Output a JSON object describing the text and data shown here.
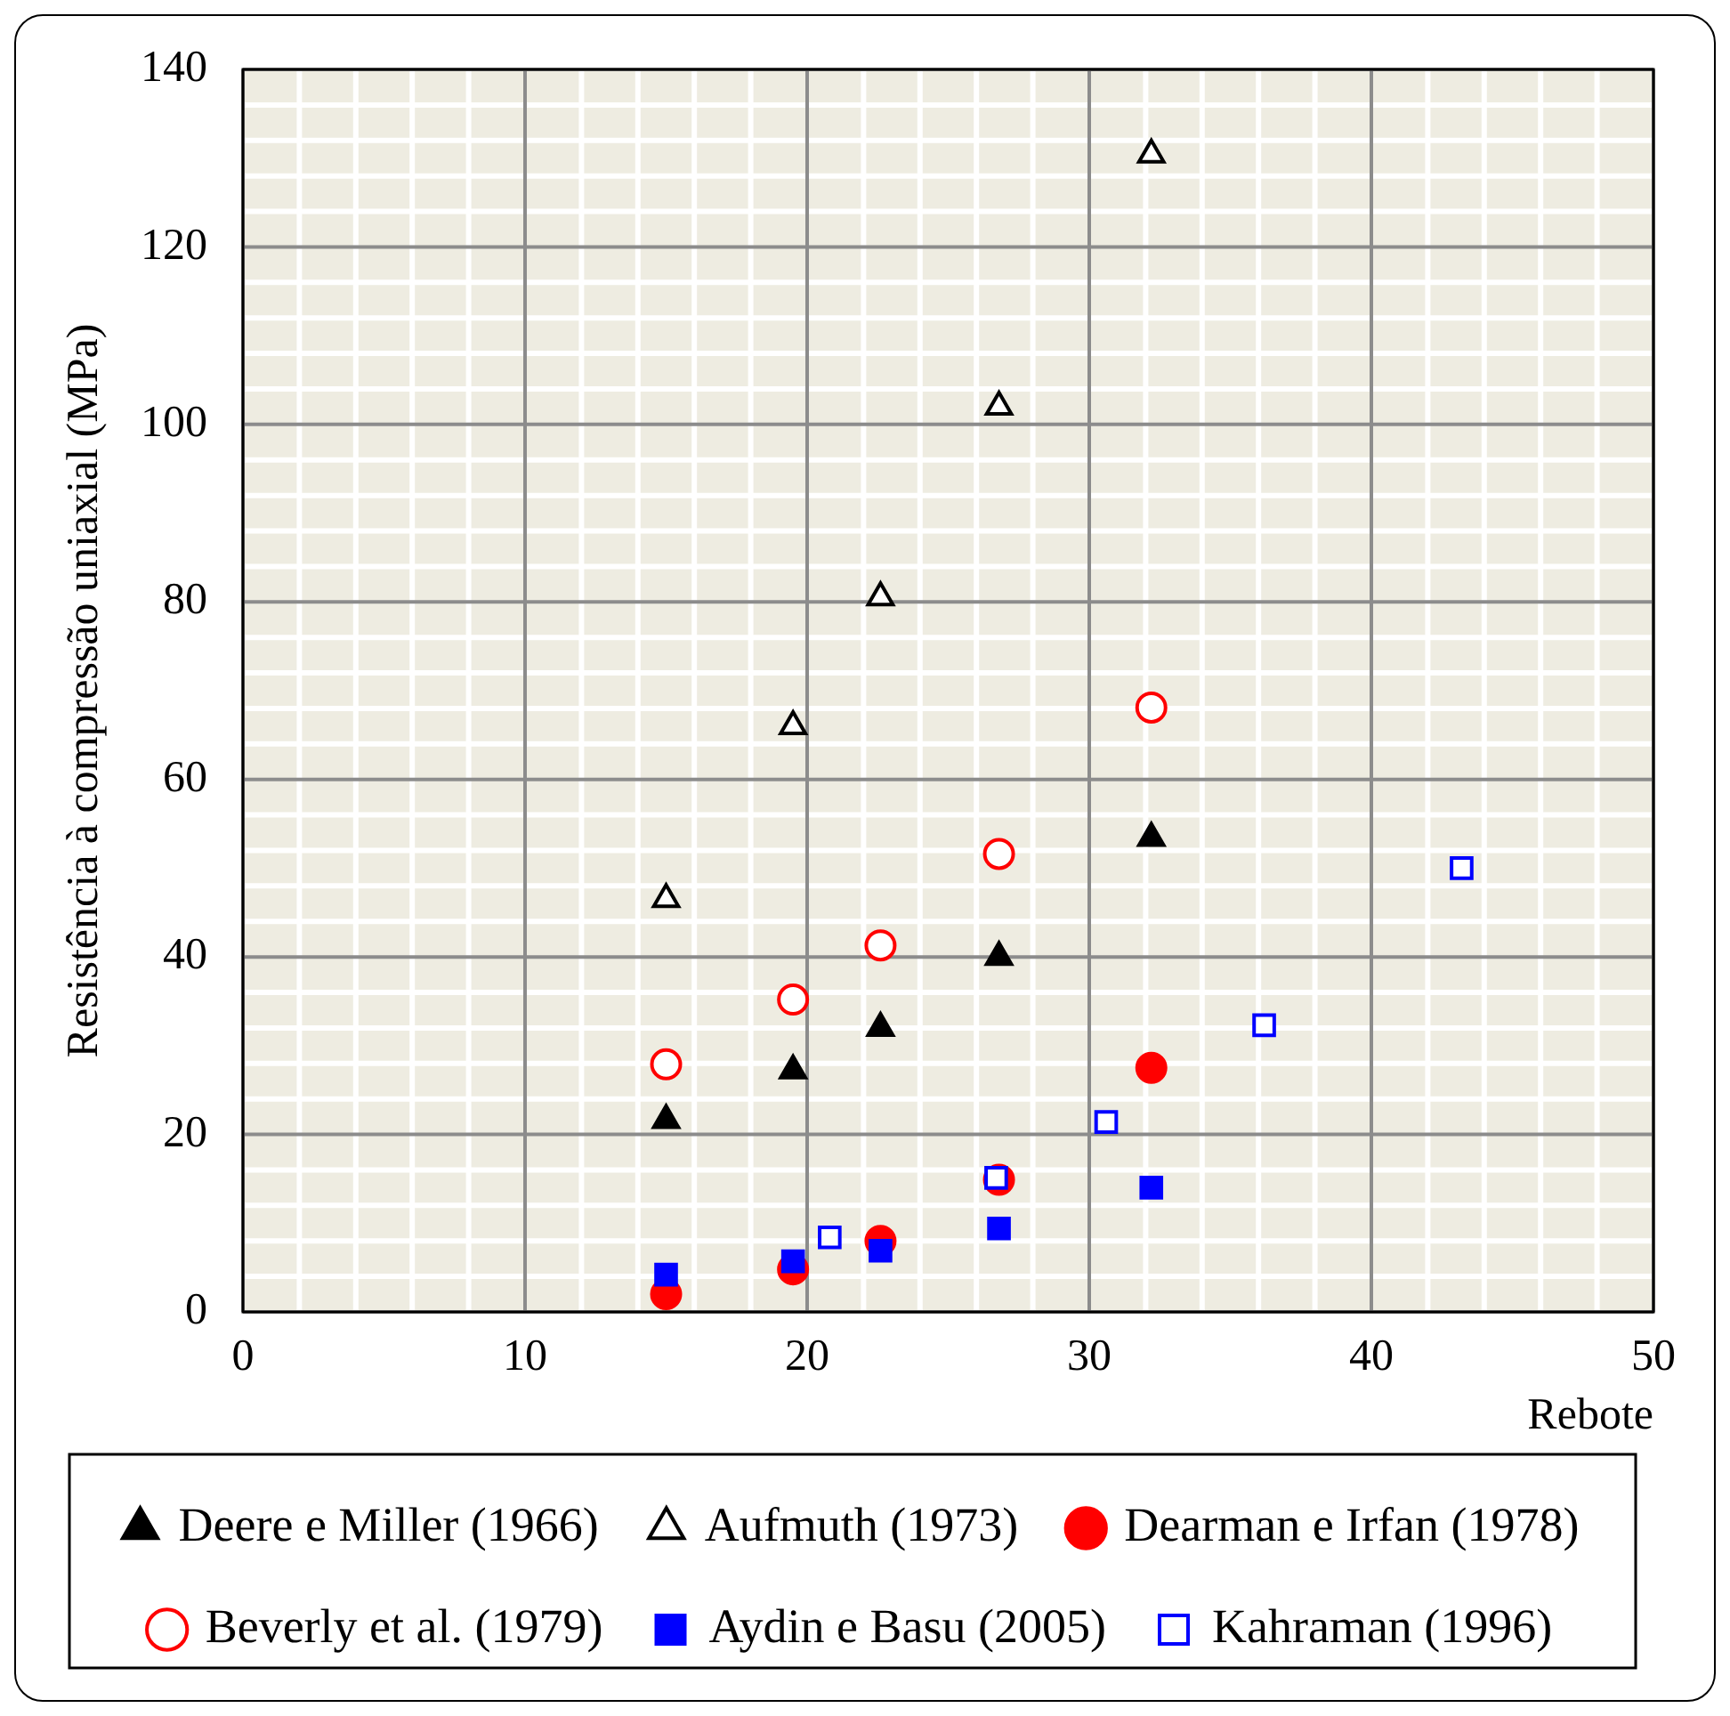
{
  "chart_data": {
    "type": "scatter",
    "xlabel": "Rebote",
    "ylabel": "Resistência à compressão uniaxial (MPa)",
    "xlim": [
      0,
      50
    ],
    "xticks": [
      0,
      10,
      20,
      30,
      40,
      50
    ],
    "ylim": [
      0,
      140
    ],
    "yticks": [
      0,
      20,
      40,
      60,
      80,
      100,
      120,
      140
    ],
    "grid": true,
    "legend": "bottom",
    "series": [
      {
        "name": "Deere e Miller (1966)",
        "color": "#000000",
        "marker": "triangle",
        "x": [
          15,
          19.5,
          22.6,
          26.8,
          32.2
        ],
        "values": [
          21.6,
          27.2,
          32,
          40,
          53.4
        ]
      },
      {
        "name": "Aufmuth (1973)",
        "color": "#000000",
        "marker": "triangle",
        "x": [
          15,
          19.5,
          22.6,
          26.8,
          32.2
        ],
        "values": [
          46.5,
          66,
          80.5,
          102,
          130.4
        ]
      },
      {
        "name": "Dearman e Irfan (1978)",
        "color": "#ff0000",
        "marker": "circle",
        "x": [
          15,
          19.5,
          22.6,
          26.8,
          32.2
        ],
        "values": [
          2,
          4.8,
          8,
          14.9,
          27.5
        ]
      },
      {
        "name": "Beverly et al. (1979)",
        "color": "#ff0000",
        "marker": "circle",
        "x": [
          15,
          19.5,
          22.6,
          26.8,
          32.2
        ],
        "values": [
          27.9,
          35.2,
          41.3,
          51.6,
          68.1
        ]
      },
      {
        "name": "Aydin e Basu (2005)",
        "color": "#0000ff",
        "marker": "square",
        "x": [
          15,
          19.5,
          22.6,
          26.8,
          32.2
        ],
        "values": [
          4.2,
          5.7,
          6.9,
          9.4,
          14
        ]
      },
      {
        "name": "Kahraman (1996)",
        "color": "#0000ff",
        "marker": "square",
        "x": [
          20.8,
          26.7,
          30.6,
          36.2,
          43.2
        ],
        "values": [
          8.4,
          15.1,
          21.4,
          32.3,
          50
        ]
      }
    ]
  }
}
